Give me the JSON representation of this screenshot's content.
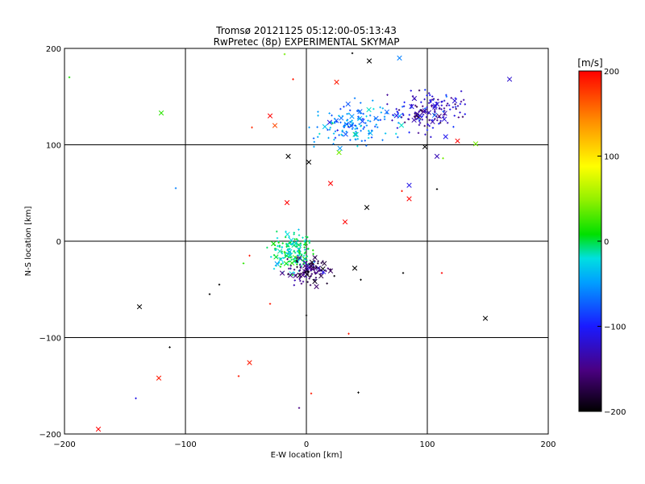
{
  "chart_data": {
    "type": "scatter",
    "title": "Tromsø 20121125 05:12:00-05:13:43",
    "subtitle": "RwPretec (8p) EXPERIMENTAL SKYMAP",
    "xlabel": "E-W location [km]",
    "ylabel": "N-S location [km]",
    "xlim": [
      -200,
      200
    ],
    "ylim": [
      -200,
      200
    ],
    "x_ticks": [
      -200,
      -100,
      0,
      100,
      200
    ],
    "y_ticks": [
      -200,
      -100,
      0,
      100,
      200
    ],
    "grid": true,
    "colorbar": {
      "label": "[m/s]",
      "range": [
        -200,
        200
      ],
      "ticks": [
        -200,
        -100,
        0,
        100,
        200
      ],
      "colormap": "rainbow (black-purple-blue-cyan-green-yellow-red)"
    },
    "marker_legend": {
      "small": "dot / plus",
      "large": "x"
    },
    "clusters": [
      {
        "center": [
          -12,
          -12
        ],
        "spread": [
          12,
          13
        ],
        "count": 180,
        "velocity": -10,
        "velocity_spread": 22
      },
      {
        "center": [
          3,
          -30
        ],
        "spread": [
          12,
          9
        ],
        "count": 120,
        "velocity": -160,
        "velocity_spread": 30
      },
      {
        "center": [
          40,
          122
        ],
        "spread": [
          22,
          14
        ],
        "count": 150,
        "velocity": -55,
        "velocity_spread": 30
      },
      {
        "center": [
          100,
          135
        ],
        "spread": [
          20,
          16
        ],
        "count": 150,
        "velocity": -125,
        "velocity_spread": 40
      }
    ],
    "points": [
      {
        "x": -172,
        "y": -195,
        "v": 200,
        "m": "x"
      },
      {
        "x": -141,
        "y": -163,
        "v": -110,
        "m": "+"
      },
      {
        "x": -122,
        "y": -142,
        "v": 190,
        "m": "x"
      },
      {
        "x": -113,
        "y": -110,
        "v": -200,
        "m": "+"
      },
      {
        "x": -138,
        "y": -68,
        "v": -200,
        "m": "x"
      },
      {
        "x": -120,
        "y": 133,
        "v": 20,
        "m": "x"
      },
      {
        "x": -196,
        "y": 170,
        "v": 15,
        "m": "+"
      },
      {
        "x": -108,
        "y": 55,
        "v": -60,
        "m": "+"
      },
      {
        "x": -56,
        "y": -140,
        "v": 190,
        "m": "+"
      },
      {
        "x": -47,
        "y": -126,
        "v": 190,
        "m": "x"
      },
      {
        "x": -30,
        "y": 130,
        "v": 200,
        "m": "x"
      },
      {
        "x": -26,
        "y": 120,
        "v": 170,
        "m": "x"
      },
      {
        "x": -45,
        "y": 118,
        "v": 180,
        "m": "+"
      },
      {
        "x": -15,
        "y": 88,
        "v": -200,
        "m": "x"
      },
      {
        "x": 2,
        "y": 82,
        "v": -200,
        "m": "x"
      },
      {
        "x": 20,
        "y": 60,
        "v": 200,
        "m": "x"
      },
      {
        "x": -16,
        "y": 40,
        "v": 200,
        "m": "x"
      },
      {
        "x": 32,
        "y": 20,
        "v": 200,
        "m": "x"
      },
      {
        "x": 50,
        "y": 35,
        "v": -200,
        "m": "x"
      },
      {
        "x": 85,
        "y": 58,
        "v": -110,
        "m": "x"
      },
      {
        "x": 85,
        "y": 44,
        "v": 200,
        "m": "x"
      },
      {
        "x": 79,
        "y": 52,
        "v": 190,
        "m": "+"
      },
      {
        "x": 108,
        "y": 88,
        "v": -130,
        "m": "x"
      },
      {
        "x": 140,
        "y": 101,
        "v": 40,
        "m": "x"
      },
      {
        "x": 168,
        "y": 168,
        "v": -120,
        "m": "x"
      },
      {
        "x": 148,
        "y": -80,
        "v": -200,
        "m": "x"
      },
      {
        "x": 112,
        "y": -33,
        "v": 200,
        "m": "+"
      },
      {
        "x": 108,
        "y": 54,
        "v": -200,
        "m": "+"
      },
      {
        "x": 0,
        "y": -77,
        "v": -200,
        "m": "+"
      },
      {
        "x": 35,
        "y": -96,
        "v": 190,
        "m": "+"
      },
      {
        "x": 4,
        "y": -158,
        "v": 190,
        "m": "+"
      },
      {
        "x": -6,
        "y": -173,
        "v": -150,
        "m": "+"
      },
      {
        "x": 43,
        "y": -157,
        "v": -200,
        "m": "+"
      },
      {
        "x": 80,
        "y": -33,
        "v": -200,
        "m": "+"
      },
      {
        "x": -30,
        "y": -65,
        "v": 190,
        "m": "+"
      },
      {
        "x": -80,
        "y": -55,
        "v": -200,
        "m": "+"
      },
      {
        "x": -72,
        "y": -45,
        "v": -200,
        "m": "+"
      },
      {
        "x": 38,
        "y": 195,
        "v": -200,
        "m": "+"
      },
      {
        "x": 52,
        "y": 187,
        "v": -200,
        "m": "x"
      },
      {
        "x": 77,
        "y": 190,
        "v": -60,
        "m": "x"
      },
      {
        "x": -18,
        "y": 194,
        "v": 40,
        "m": "+"
      },
      {
        "x": -11,
        "y": 168,
        "v": 190,
        "m": "+"
      },
      {
        "x": 25,
        "y": 165,
        "v": 190,
        "m": "x"
      },
      {
        "x": 125,
        "y": 104,
        "v": 200,
        "m": "x"
      },
      {
        "x": 113,
        "y": 86,
        "v": 40,
        "m": "+"
      },
      {
        "x": 27,
        "y": 92,
        "v": 40,
        "m": "x"
      },
      {
        "x": 98,
        "y": 98,
        "v": -200,
        "m": "x"
      },
      {
        "x": -47,
        "y": -15,
        "v": 190,
        "m": "+"
      },
      {
        "x": -52,
        "y": -23,
        "v": 20,
        "m": "+"
      },
      {
        "x": 40,
        "y": -28,
        "v": -200,
        "m": "x"
      },
      {
        "x": 45,
        "y": -40,
        "v": -200,
        "m": "+"
      }
    ]
  }
}
